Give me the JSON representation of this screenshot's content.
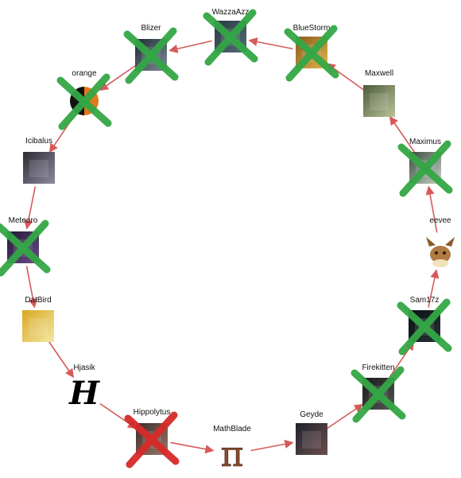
{
  "diagram": {
    "nodes": [
      {
        "id": "wazzaazz",
        "label": "WazzaAzz",
        "avatar": {
          "bg1": "#2b3a44",
          "bg2": "#536b76"
        },
        "mark": "green"
      },
      {
        "id": "bluestorm",
        "label": "BlueStorm",
        "avatar": {
          "bg1": "#8a5a1a",
          "bg2": "#e0b44e"
        },
        "mark": "green"
      },
      {
        "id": "maxwell",
        "label": "Maxwell",
        "avatar": {
          "bg1": "#4d5a3a",
          "bg2": "#b9c39a"
        },
        "mark": "none"
      },
      {
        "id": "maximus",
        "label": "Maximus",
        "avatar": {
          "bg1": "#3d4b3c",
          "bg2": "#c3d1c8"
        },
        "mark": "green"
      },
      {
        "id": "eevee",
        "label": "eevee",
        "avatar": {
          "kind": "eevee"
        },
        "mark": "none"
      },
      {
        "id": "sam17z",
        "label": "Sam17z",
        "avatar": {
          "bg1": "#0b0f12",
          "bg2": "#263238"
        },
        "mark": "green"
      },
      {
        "id": "firekitten",
        "label": "Firekitten",
        "avatar": {
          "bg1": "#1a1a1a",
          "bg2": "#555555"
        },
        "mark": "green"
      },
      {
        "id": "geyde",
        "label": "Geyde",
        "avatar": {
          "bg1": "#1f2230",
          "bg2": "#6b4e4a"
        },
        "mark": "none"
      },
      {
        "id": "mathblade",
        "label": "MathBlade",
        "avatar": {
          "kind": "pi",
          "glyph": "π"
        },
        "mark": "none"
      },
      {
        "id": "hippolytus",
        "label": "Hippolytus",
        "avatar": {
          "bg1": "#3b2b2a",
          "bg2": "#9b7a67"
        },
        "mark": "red"
      },
      {
        "id": "hjasik",
        "label": "Hjasik",
        "avatar": {
          "kind": "letter",
          "glyph": "H"
        },
        "mark": "none"
      },
      {
        "id": "datbird",
        "label": "DatBird",
        "avatar": {
          "bg1": "#d9a823",
          "bg2": "#f4e7a3"
        },
        "mark": "none"
      },
      {
        "id": "meteoro",
        "label": "Meteoro",
        "avatar": {
          "bg1": "#231a33",
          "bg2": "#6a4a8c"
        },
        "mark": "green"
      },
      {
        "id": "icibalus",
        "label": "Icibalus",
        "avatar": {
          "bg1": "#2c2c34",
          "bg2": "#8c8aa0"
        },
        "mark": "none"
      },
      {
        "id": "orange",
        "label": "orange",
        "avatar": {
          "kind": "ball"
        },
        "mark": "green"
      },
      {
        "id": "blizer",
        "label": "Blizer",
        "avatar": {
          "bg1": "#202b33",
          "bg2": "#7d8d99"
        },
        "mark": "green"
      }
    ],
    "edges": [
      [
        "maxwell",
        "bluestorm"
      ],
      [
        "bluestorm",
        "wazzaazz"
      ],
      [
        "wazzaazz",
        "blizer"
      ],
      [
        "blizer",
        "orange"
      ],
      [
        "orange",
        "icibalus"
      ],
      [
        "icibalus",
        "meteoro"
      ],
      [
        "meteoro",
        "datbird"
      ],
      [
        "datbird",
        "hjasik"
      ],
      [
        "hjasik",
        "hippolytus"
      ],
      [
        "hippolytus",
        "mathblade"
      ],
      [
        "mathblade",
        "geyde"
      ],
      [
        "geyde",
        "firekitten"
      ],
      [
        "firekitten",
        "sam17z"
      ],
      [
        "sam17z",
        "eevee"
      ],
      [
        "eevee",
        "maximus"
      ],
      [
        "maximus",
        "maxwell"
      ]
    ],
    "colors": {
      "arrow": "#d55a5a",
      "green_x": "#33a745",
      "red_x": "#d62a2a",
      "label": "#111111"
    }
  }
}
